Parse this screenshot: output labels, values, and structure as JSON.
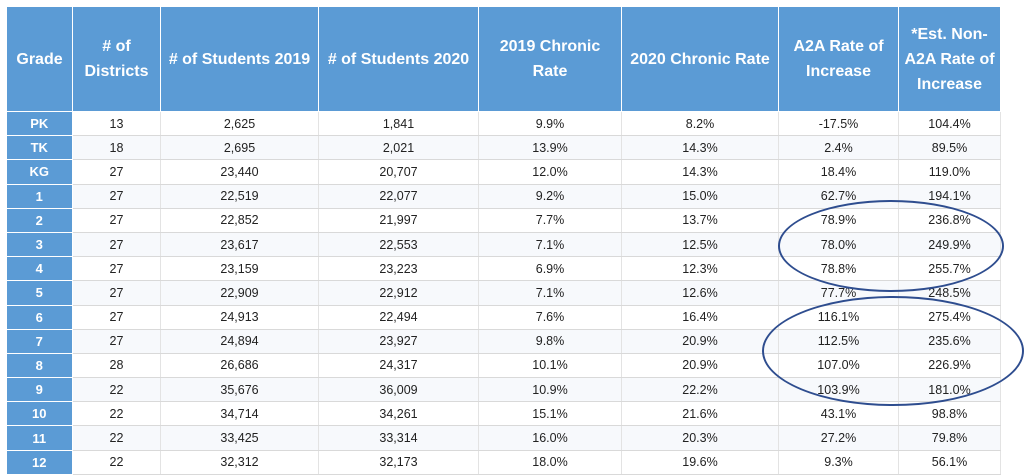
{
  "columns": [
    "Grade",
    "# of Districts",
    "# of Students 2019",
    "# of Students 2020",
    "2019 Chronic Rate",
    "2020 Chronic Rate",
    "A2A Rate of Increase",
    "*Est. Non-A2A Rate of Increase"
  ],
  "rows": [
    [
      "PK",
      "13",
      "2,625",
      "1,841",
      "9.9%",
      "8.2%",
      "-17.5%",
      "104.4%"
    ],
    [
      "TK",
      "18",
      "2,695",
      "2,021",
      "13.9%",
      "14.3%",
      "2.4%",
      "89.5%"
    ],
    [
      "KG",
      "27",
      "23,440",
      "20,707",
      "12.0%",
      "14.3%",
      "18.4%",
      "119.0%"
    ],
    [
      "1",
      "27",
      "22,519",
      "22,077",
      "9.2%",
      "15.0%",
      "62.7%",
      "194.1%"
    ],
    [
      "2",
      "27",
      "22,852",
      "21,997",
      "7.7%",
      "13.7%",
      "78.9%",
      "236.8%"
    ],
    [
      "3",
      "27",
      "23,617",
      "22,553",
      "7.1%",
      "12.5%",
      "78.0%",
      "249.9%"
    ],
    [
      "4",
      "27",
      "23,159",
      "23,223",
      "6.9%",
      "12.3%",
      "78.8%",
      "255.7%"
    ],
    [
      "5",
      "27",
      "22,909",
      "22,912",
      "7.1%",
      "12.6%",
      "77.7%",
      "248.5%"
    ],
    [
      "6",
      "27",
      "24,913",
      "22,494",
      "7.6%",
      "16.4%",
      "116.1%",
      "275.4%"
    ],
    [
      "7",
      "27",
      "24,894",
      "23,927",
      "9.8%",
      "20.9%",
      "112.5%",
      "235.6%"
    ],
    [
      "8",
      "28",
      "26,686",
      "24,317",
      "10.1%",
      "20.9%",
      "107.0%",
      "226.9%"
    ],
    [
      "9",
      "22",
      "35,676",
      "36,009",
      "10.9%",
      "22.2%",
      "103.9%",
      "181.0%"
    ],
    [
      "10",
      "22",
      "34,714",
      "34,261",
      "15.1%",
      "21.6%",
      "43.1%",
      "98.8%"
    ],
    [
      "11",
      "22",
      "33,425",
      "33,314",
      "16.0%",
      "20.3%",
      "27.2%",
      "79.8%"
    ],
    [
      "12",
      "22",
      "32,312",
      "32,173",
      "18.0%",
      "19.6%",
      "9.3%",
      "56.1%"
    ]
  ],
  "colors": {
    "header": "#5b9bd5",
    "ellipse": "#2e4d8f"
  }
}
